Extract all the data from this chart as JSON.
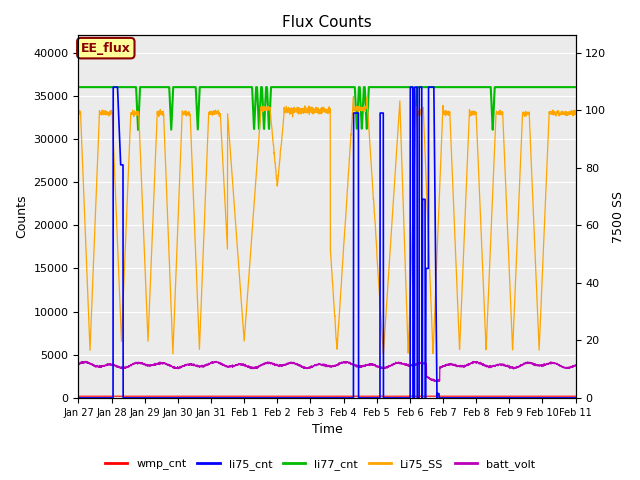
{
  "title": "Flux Counts",
  "xlabel": "Time",
  "ylabel_left": "Counts",
  "ylabel_right": "7500 SS",
  "annotation_text": "EE_flux",
  "annotation_color": "#8B0000",
  "annotation_bg": "#FFFF99",
  "annotation_border": "#8B0000",
  "left_ylim": [
    0,
    42000
  ],
  "right_ylim": [
    0,
    126
  ],
  "left_yticks": [
    0,
    5000,
    10000,
    15000,
    20000,
    25000,
    30000,
    35000,
    40000
  ],
  "right_yticks": [
    0,
    20,
    40,
    60,
    80,
    100,
    120
  ],
  "xtick_labels": [
    "Jan 27",
    "Jan 28",
    "Jan 29",
    "Jan 30",
    "Jan 31",
    "Feb 1",
    "Feb 2",
    "Feb 3",
    "Feb 4",
    "Feb 5",
    "Feb 6",
    "Feb 7",
    "Feb 8",
    "Feb 9",
    "Feb 10",
    "Feb 11"
  ],
  "colors": {
    "wmp_cnt": "#FF0000",
    "li75_cnt": "#0000FF",
    "li77_cnt": "#00BB00",
    "Li75_SS": "#FFA500",
    "batt_volt": "#BB00BB"
  },
  "bg_color": "#EBEBEB",
  "grid_color": "#FFFFFF",
  "legend_items": [
    "wmp_cnt",
    "li75_cnt",
    "li77_cnt",
    "Li75_SS",
    "batt_volt"
  ]
}
